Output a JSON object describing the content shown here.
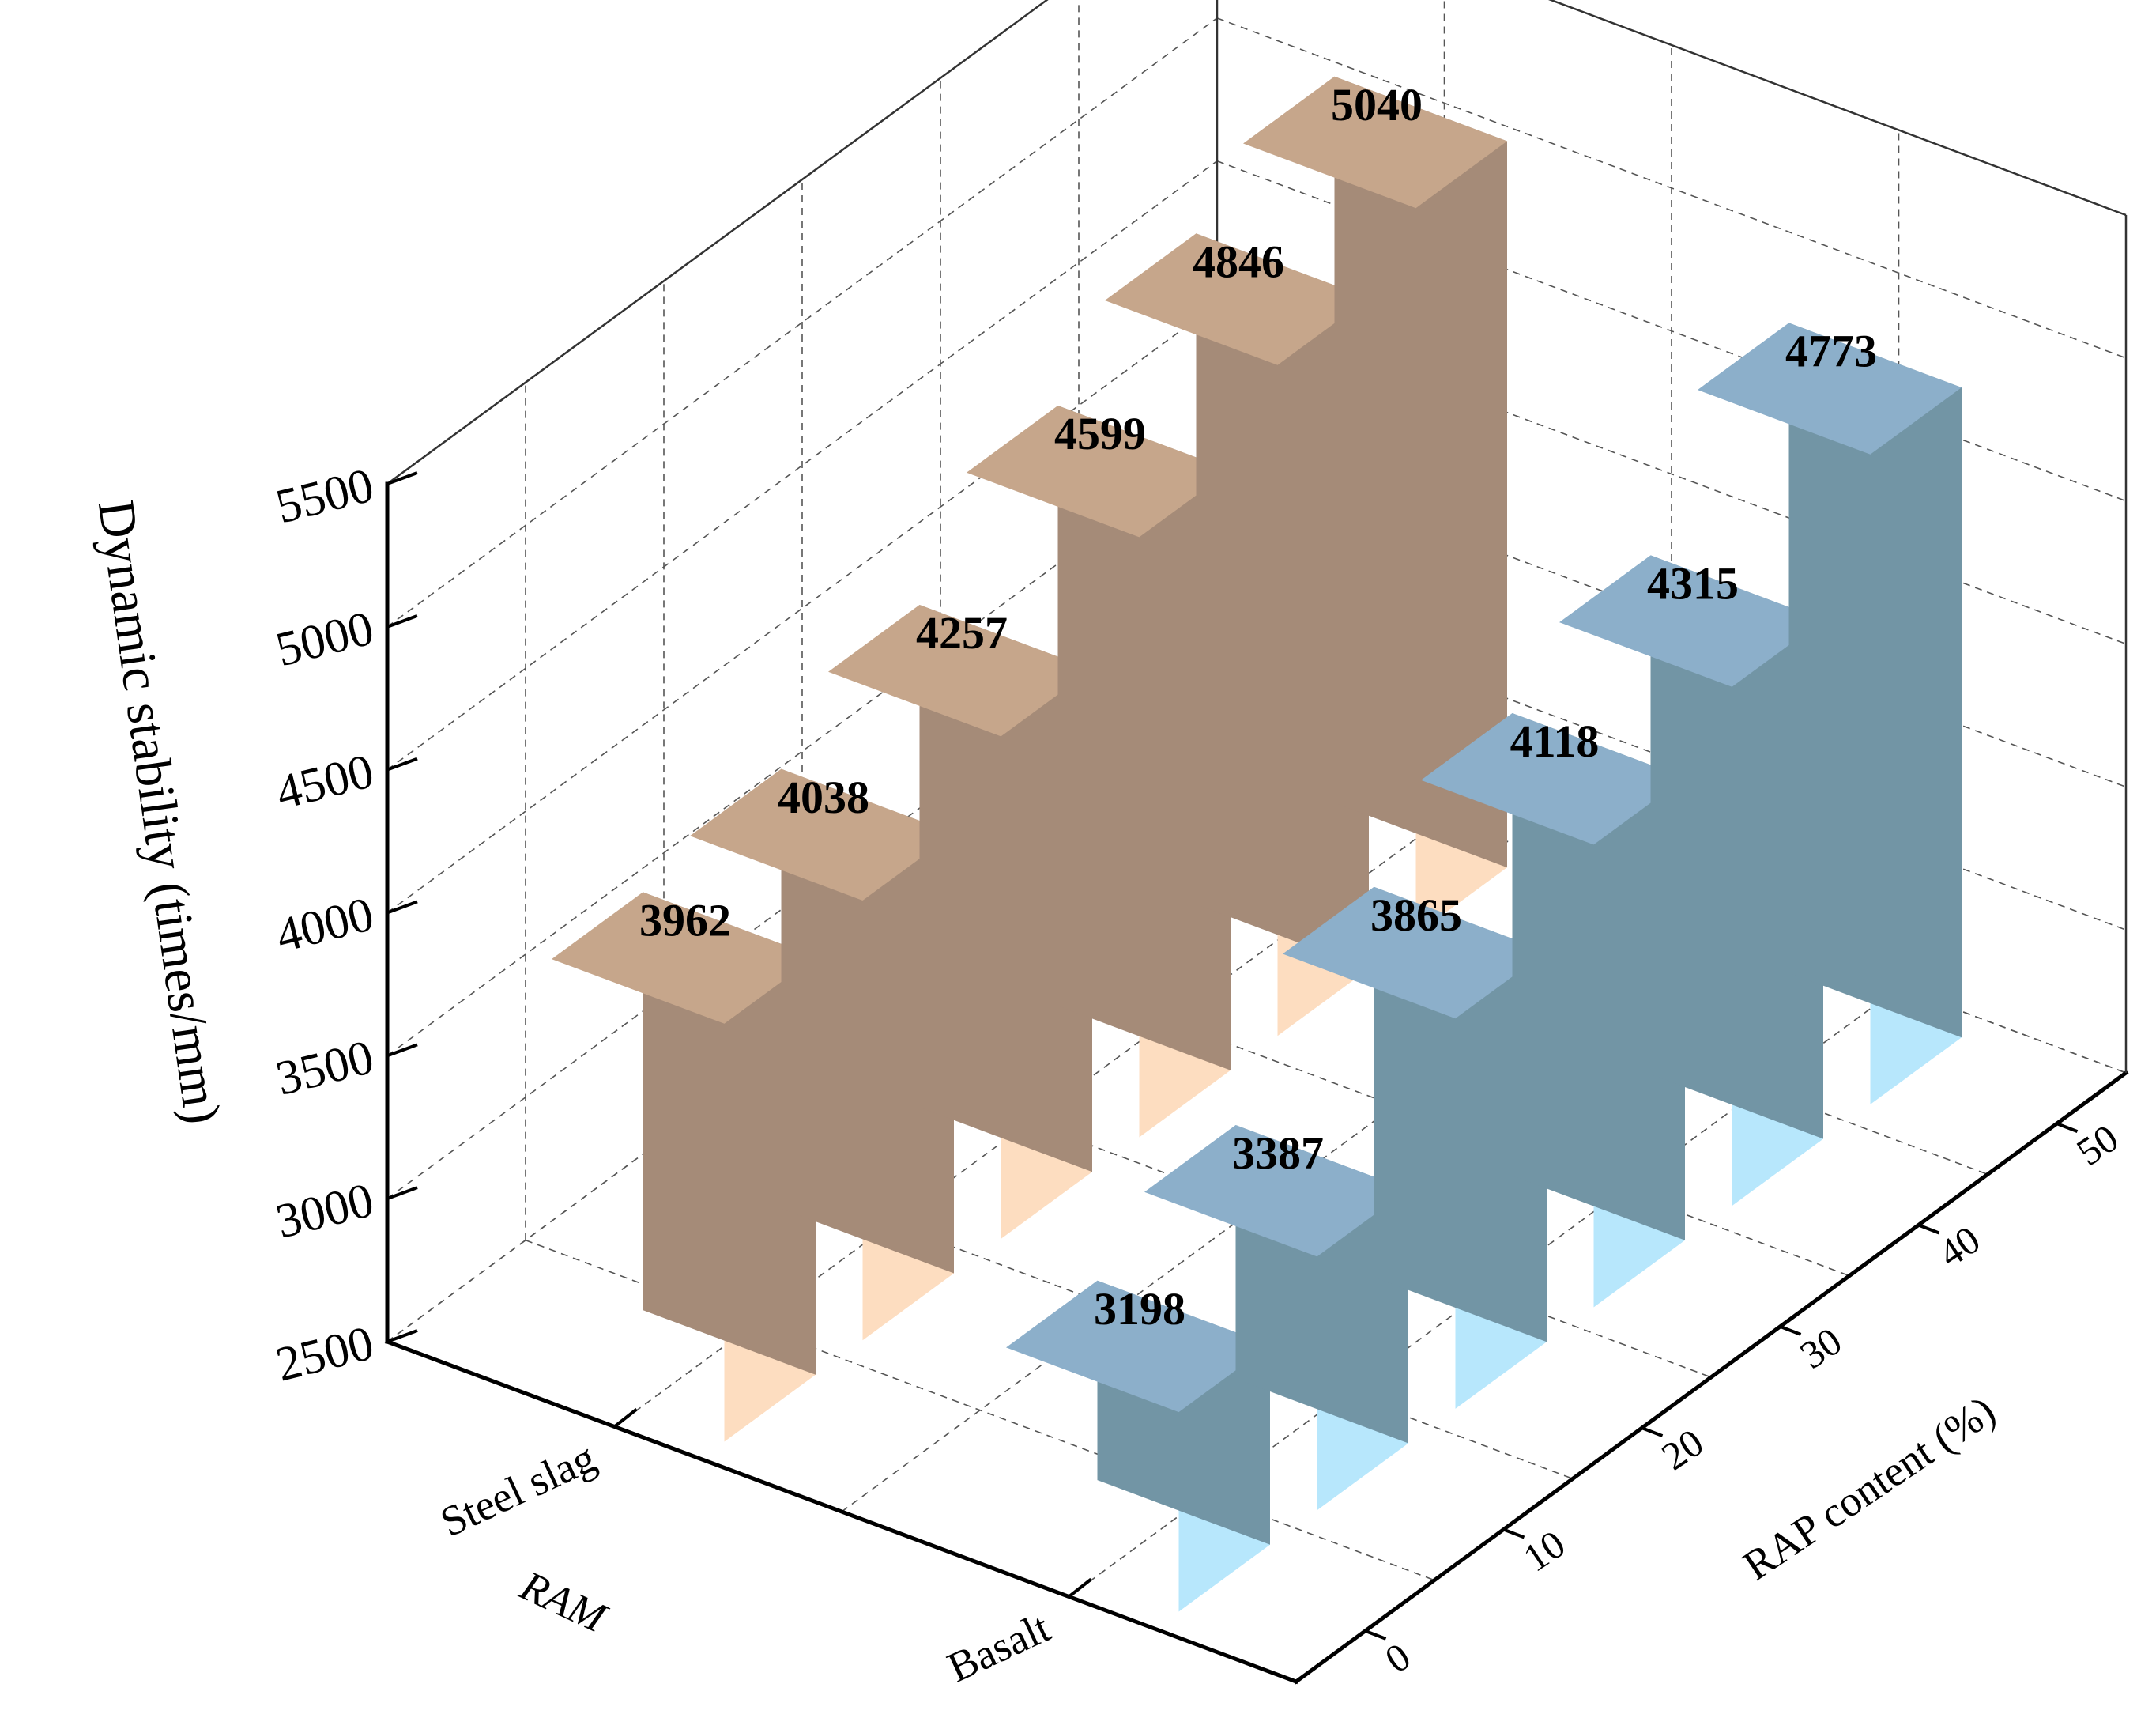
{
  "chart_data": {
    "type": "bar3d",
    "z_axis": {
      "label": "Dynamic stability (times/mm)",
      "range": [
        2500,
        5500
      ],
      "ticks": [
        2500,
        3000,
        3500,
        4000,
        4500,
        5000,
        5500
      ]
    },
    "y_axis": {
      "label": "RAP content (%)",
      "categories": [
        "0",
        "10",
        "20",
        "30",
        "40",
        "50"
      ]
    },
    "x_axis": {
      "label": "RAM",
      "categories": [
        "Steel slag",
        "Basalt"
      ]
    },
    "series": [
      {
        "category": "Steel slag",
        "values": [
          3962,
          4038,
          4257,
          4599,
          4846,
          5040
        ],
        "labels": [
          "3962",
          "4038",
          "4257",
          "4599",
          "4846",
          "5040"
        ],
        "colors": {
          "front": "#FDDDC0",
          "side": "#A58B78",
          "top": "#C6A68B"
        }
      },
      {
        "category": "Basalt",
        "values": [
          3198,
          3387,
          3865,
          4118,
          4315,
          4773
        ],
        "labels": [
          "3198",
          "3387",
          "3865",
          "4118",
          "4315",
          "4773"
        ],
        "colors": {
          "front": "#B7E7FC",
          "side": "#7295A5",
          "top": "#8CAFCA"
        }
      }
    ],
    "grid": true
  }
}
